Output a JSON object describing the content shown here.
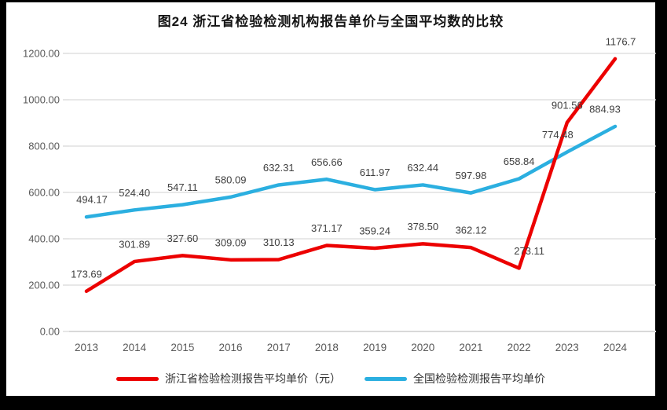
{
  "chart_data": {
    "type": "line",
    "title": "图24  浙江省检验检测机构报告单价与全国平均数的比较",
    "categories": [
      "2013",
      "2014",
      "2015",
      "2016",
      "2017",
      "2018",
      "2019",
      "2020",
      "2021",
      "2022",
      "2023",
      "2024"
    ],
    "series": [
      {
        "name": "浙江省检验检测报告平均单价（元）",
        "color": "#EC0000",
        "values": [
          173.69,
          301.89,
          327.6,
          309.09,
          310.13,
          371.17,
          359.24,
          378.5,
          362.12,
          273.11,
          901.56,
          1176.7
        ],
        "labels": [
          "173.69",
          "301.89",
          "327.60",
          "309.09",
          "310.13",
          "371.17",
          "359.24",
          "378.50",
          "362.12",
          "273.11",
          "901.56",
          "1176.7"
        ]
      },
      {
        "name": "全国检验检测报告平均单价",
        "color": "#2BAFE0",
        "values": [
          494.17,
          524.4,
          547.11,
          580.09,
          632.31,
          656.66,
          611.97,
          632.44,
          597.98,
          658.84,
          774.48,
          884.93
        ],
        "labels": [
          "494.17",
          "524.40",
          "547.11",
          "580.09",
          "632.31",
          "656.66",
          "611.97",
          "632.44",
          "597.98",
          "658.84",
          "774.48",
          "884.93"
        ]
      }
    ],
    "y_axis": {
      "min": 0,
      "max": 1200,
      "step": 200,
      "tick_labels": [
        "0.00",
        "200.00",
        "400.00",
        "600.00",
        "800.00",
        "1000.00",
        "1200.00"
      ]
    },
    "x_axis": {
      "label": ""
    },
    "grid": true,
    "legend_position": "bottom",
    "colors": {
      "grid_line": "#D9D9D9",
      "axis_line": "#D0D0D0",
      "axis_label": "#595959",
      "data_label": "#3F3F3F",
      "frame": "#000000",
      "background": "#FFFFFF"
    }
  }
}
